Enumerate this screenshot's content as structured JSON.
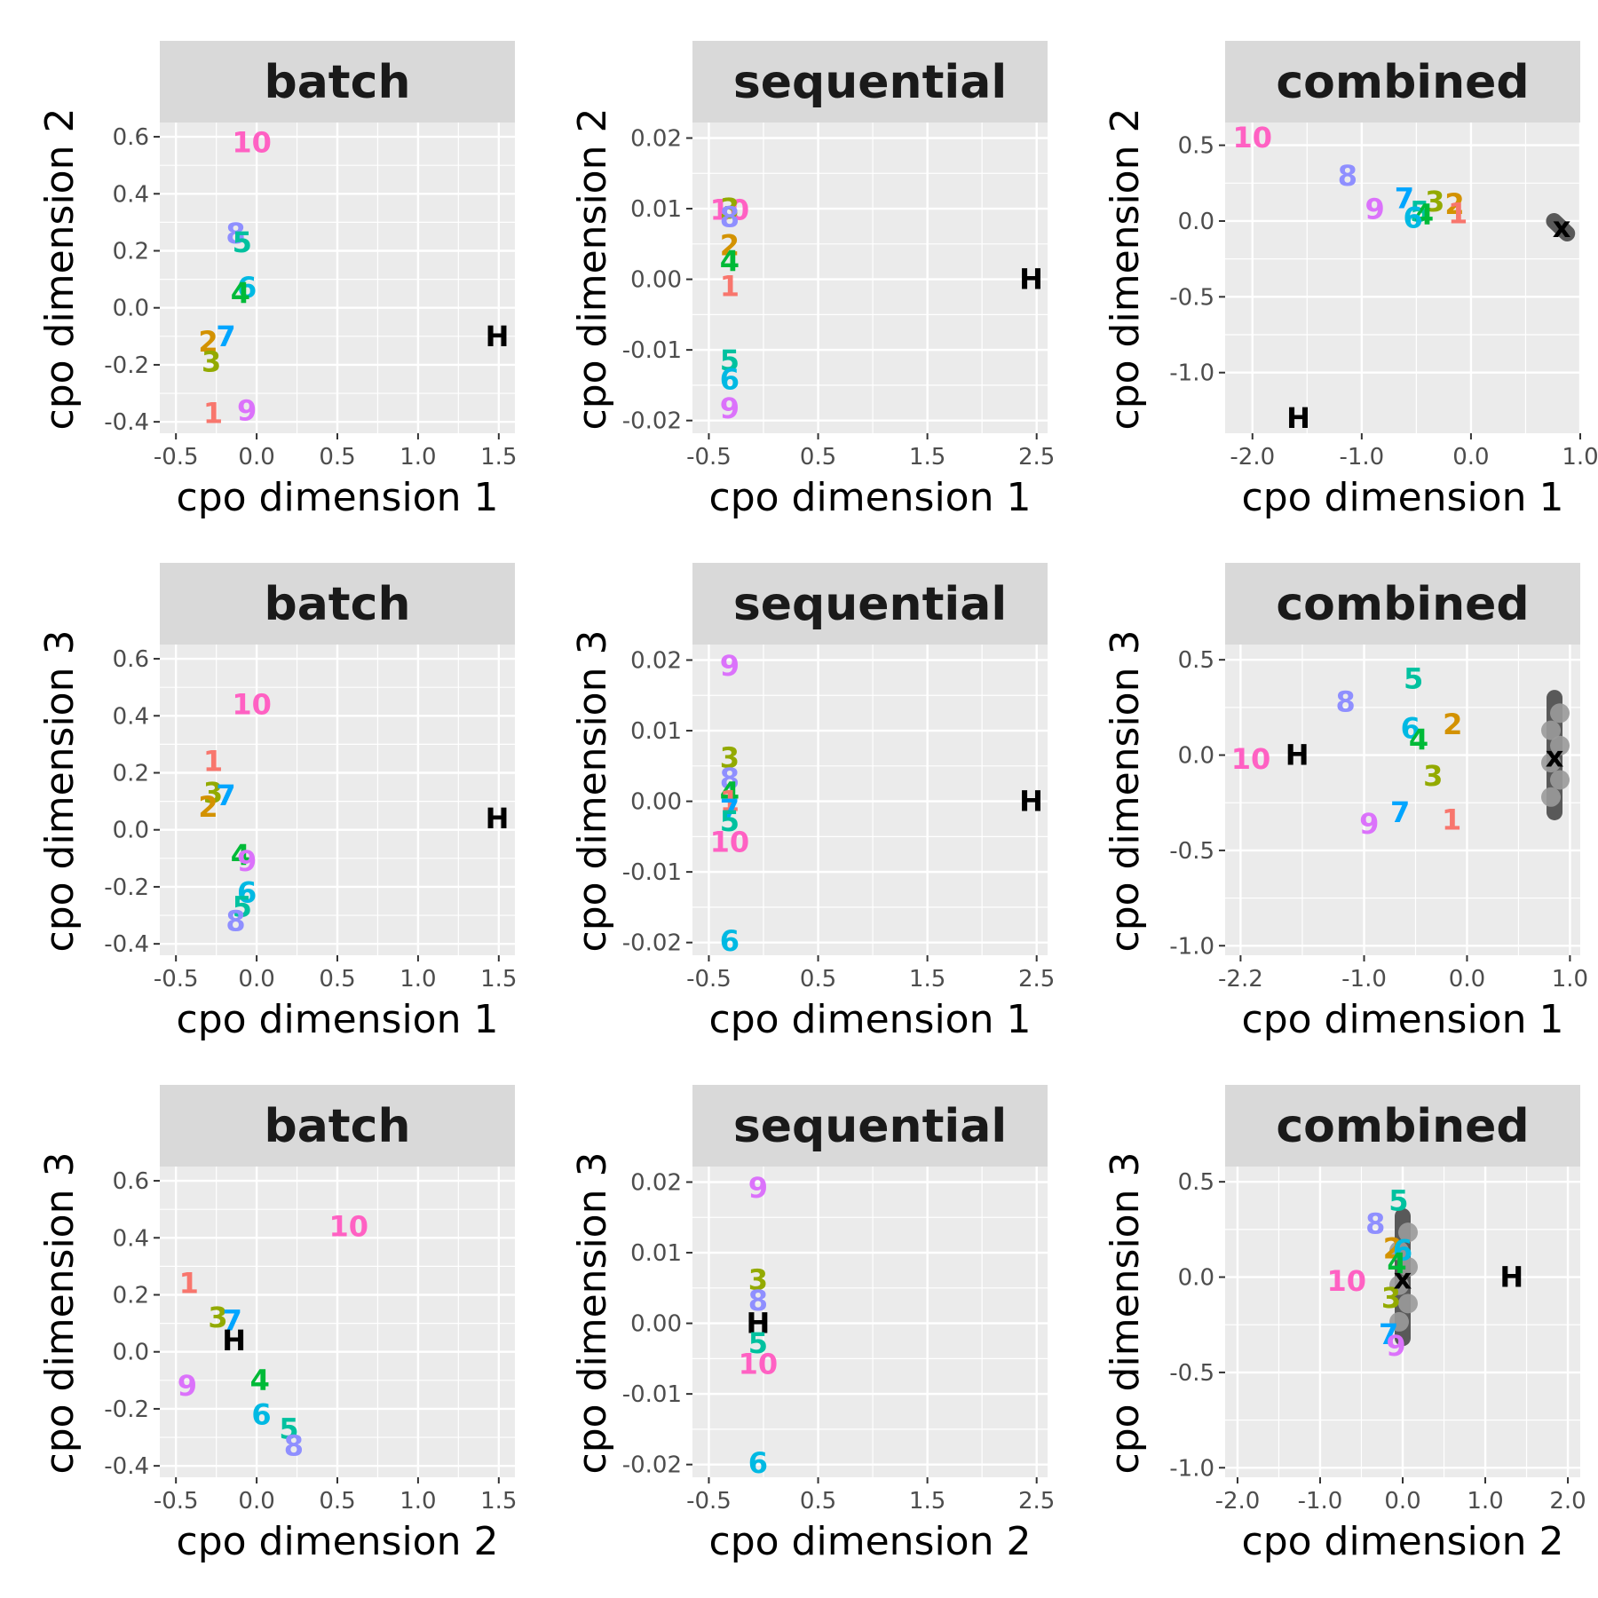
{
  "colors": {
    "1": "#F8766D",
    "2": "#D39200",
    "3": "#93AA00",
    "4": "#00BA38",
    "5": "#00C19F",
    "6": "#00B9E3",
    "7": "#00A5FF",
    "8": "#8F8FFF",
    "9": "#DB72FB",
    "10": "#FF61C3",
    "H": "#000000",
    "x": "#000000",
    "cloud": "#595959",
    "cloud_light": "#9a9a9a",
    "panel_bg": "#EBEBEB",
    "strip_bg": "#D9D9D9",
    "grid": "#FFFFFF"
  },
  "chart_data": [
    {
      "type": "scatter",
      "title": "batch",
      "xlabel": "cpo dimension 1",
      "ylabel": "cpo dimension 2",
      "xlim": [
        -0.6,
        1.6
      ],
      "ylim": [
        -0.44,
        0.65
      ],
      "xticks": [
        -0.5,
        0,
        0.5,
        1,
        1.5
      ],
      "xtick_labels": [
        "-0.5",
        "0.0",
        "0.5",
        "1.0",
        "1.5"
      ],
      "yticks": [
        -0.4,
        -0.2,
        0,
        0.2,
        0.4,
        0.6
      ],
      "ytick_labels": [
        "-0.4",
        "-0.2",
        "0.0",
        "0.2",
        "0.4",
        "0.6"
      ],
      "points": [
        {
          "label": "10",
          "x": -0.03,
          "y": 0.58
        },
        {
          "label": "8",
          "x": -0.13,
          "y": 0.26
        },
        {
          "label": "5",
          "x": -0.09,
          "y": 0.23
        },
        {
          "label": "6",
          "x": -0.06,
          "y": 0.07
        },
        {
          "label": "4",
          "x": -0.1,
          "y": 0.05
        },
        {
          "label": "7",
          "x": -0.19,
          "y": -0.1
        },
        {
          "label": "2",
          "x": -0.3,
          "y": -0.12
        },
        {
          "label": "3",
          "x": -0.28,
          "y": -0.19
        },
        {
          "label": "1",
          "x": -0.27,
          "y": -0.37
        },
        {
          "label": "9",
          "x": -0.06,
          "y": -0.36
        },
        {
          "label": "H",
          "x": 1.49,
          "y": -0.1
        }
      ]
    },
    {
      "type": "scatter",
      "title": "sequential",
      "xlabel": "cpo dimension 1",
      "ylabel": "cpo dimension 2",
      "xlim": [
        -0.65,
        2.6
      ],
      "ylim": [
        -0.0218,
        0.0222
      ],
      "xticks": [
        -0.5,
        0.5,
        1.5,
        2.5
      ],
      "xtick_labels": [
        "-0.5",
        "0.5",
        "1.5",
        "2.5"
      ],
      "yticks": [
        -0.02,
        -0.01,
        0,
        0.01,
        0.02
      ],
      "ytick_labels": [
        "-0.02",
        "-0.01",
        "0.00",
        "0.01",
        "0.02"
      ],
      "points": [
        {
          "label": "10",
          "x": -0.31,
          "y": 0.0098
        },
        {
          "label": "3",
          "x": -0.31,
          "y": 0.01
        },
        {
          "label": "8",
          "x": -0.31,
          "y": 0.0088
        },
        {
          "label": "2",
          "x": -0.31,
          "y": 0.0048
        },
        {
          "label": "4",
          "x": -0.31,
          "y": 0.0025
        },
        {
          "label": "1",
          "x": -0.31,
          "y": -0.001
        },
        {
          "label": "5",
          "x": -0.31,
          "y": -0.0115
        },
        {
          "label": "6",
          "x": -0.31,
          "y": -0.0142
        },
        {
          "label": "9",
          "x": -0.31,
          "y": -0.0183
        },
        {
          "label": "H",
          "x": 2.45,
          "y": 0
        }
      ]
    },
    {
      "type": "scatter",
      "title": "combined",
      "xlabel": "cpo dimension 1",
      "ylabel": "cpo dimension 2",
      "xlim": [
        -2.25,
        1.0
      ],
      "ylim": [
        -1.4,
        0.65
      ],
      "xticks": [
        -2,
        -1,
        0,
        1
      ],
      "xtick_labels": [
        "-2.0",
        "-1.0",
        "0.0",
        "1.0"
      ],
      "yticks": [
        -1,
        -0.5,
        0,
        0.5
      ],
      "ytick_labels": [
        "-1.0",
        "-0.5",
        "0.0",
        "0.5"
      ],
      "points": [
        {
          "label": "10",
          "x": -2.0,
          "y": 0.55
        },
        {
          "label": "8",
          "x": -1.13,
          "y": 0.3
        },
        {
          "label": "7",
          "x": -0.61,
          "y": 0.15
        },
        {
          "label": "3",
          "x": -0.33,
          "y": 0.13
        },
        {
          "label": "2",
          "x": -0.15,
          "y": 0.11
        },
        {
          "label": "9",
          "x": -0.88,
          "y": 0.08
        },
        {
          "label": "5",
          "x": -0.47,
          "y": 0.06
        },
        {
          "label": "4",
          "x": -0.43,
          "y": 0.04
        },
        {
          "label": "1",
          "x": -0.12,
          "y": 0.05
        },
        {
          "label": "6",
          "x": -0.53,
          "y": 0.02
        },
        {
          "label": "H",
          "x": -1.58,
          "y": -1.3
        },
        {
          "label": "x",
          "x": 0.83,
          "y": -0.04
        }
      ],
      "cloud": {
        "axis": "x",
        "center": [
          0.82,
          0.0
        ],
        "halfspan": 0.06
      }
    },
    {
      "type": "scatter",
      "title": "batch",
      "xlabel": "cpo dimension 1",
      "ylabel": "cpo dimension 3",
      "xlim": [
        -0.6,
        1.6
      ],
      "ylim": [
        -0.44,
        0.65
      ],
      "xticks": [
        -0.5,
        0,
        0.5,
        1,
        1.5
      ],
      "xtick_labels": [
        "-0.5",
        "0.0",
        "0.5",
        "1.0",
        "1.5"
      ],
      "yticks": [
        -0.4,
        -0.2,
        0,
        0.2,
        0.4,
        0.6
      ],
      "ytick_labels": [
        "-0.4",
        "-0.2",
        "0.0",
        "0.2",
        "0.4",
        "0.6"
      ],
      "points": [
        {
          "label": "10",
          "x": -0.03,
          "y": 0.44
        },
        {
          "label": "1",
          "x": -0.27,
          "y": 0.24
        },
        {
          "label": "3",
          "x": -0.27,
          "y": 0.13
        },
        {
          "label": "7",
          "x": -0.19,
          "y": 0.12
        },
        {
          "label": "2",
          "x": -0.3,
          "y": 0.08
        },
        {
          "label": "H",
          "x": 1.49,
          "y": 0.04
        },
        {
          "label": "4",
          "x": -0.1,
          "y": -0.09
        },
        {
          "label": "9",
          "x": -0.06,
          "y": -0.11
        },
        {
          "label": "6",
          "x": -0.06,
          "y": -0.22
        },
        {
          "label": "5",
          "x": -0.09,
          "y": -0.27
        },
        {
          "label": "8",
          "x": -0.13,
          "y": -0.32
        }
      ]
    },
    {
      "type": "scatter",
      "title": "sequential",
      "xlabel": "cpo dimension 1",
      "ylabel": "cpo dimension 3",
      "xlim": [
        -0.65,
        2.6
      ],
      "ylim": [
        -0.0218,
        0.0222
      ],
      "xticks": [
        -0.5,
        0.5,
        1.5,
        2.5
      ],
      "xtick_labels": [
        "-0.5",
        "0.5",
        "1.5",
        "2.5"
      ],
      "yticks": [
        -0.02,
        -0.01,
        0,
        0.01,
        0.02
      ],
      "ytick_labels": [
        "-0.02",
        "-0.01",
        "0.00",
        "0.01",
        "0.02"
      ],
      "points": [
        {
          "label": "9",
          "x": -0.31,
          "y": 0.0192
        },
        {
          "label": "3",
          "x": -0.31,
          "y": 0.0062
        },
        {
          "label": "8",
          "x": -0.31,
          "y": 0.0032
        },
        {
          "label": "4",
          "x": -0.31,
          "y": 0.0012
        },
        {
          "label": "1",
          "x": -0.31,
          "y": 0.0
        },
        {
          "label": "7",
          "x": -0.31,
          "y": -0.0012
        },
        {
          "label": "5",
          "x": -0.31,
          "y": -0.0028
        },
        {
          "label": "10",
          "x": -0.31,
          "y": -0.0058
        },
        {
          "label": "6",
          "x": -0.31,
          "y": -0.0198
        },
        {
          "label": "H",
          "x": 2.45,
          "y": 0
        }
      ]
    },
    {
      "type": "scatter",
      "title": "combined",
      "xlabel": "cpo dimension 1",
      "ylabel": "cpo dimension 3",
      "xlim": [
        -2.35,
        1.1
      ],
      "ylim": [
        -1.05,
        0.58
      ],
      "xticks": [
        -2.2,
        -1,
        0,
        1
      ],
      "xtick_labels": [
        "-2.2",
        "-1.0",
        "0.0",
        "1.0"
      ],
      "yticks": [
        -1,
        -0.5,
        0,
        0.5
      ],
      "ytick_labels": [
        "-1.0",
        "-0.5",
        "0.0",
        "0.5"
      ],
      "points": [
        {
          "label": "5",
          "x": -0.52,
          "y": 0.4
        },
        {
          "label": "8",
          "x": -1.18,
          "y": 0.28
        },
        {
          "label": "2",
          "x": -0.14,
          "y": 0.16
        },
        {
          "label": "6",
          "x": -0.55,
          "y": 0.14
        },
        {
          "label": "4",
          "x": -0.47,
          "y": 0.08
        },
        {
          "label": "10",
          "x": -2.1,
          "y": -0.02
        },
        {
          "label": "H",
          "x": -1.65,
          "y": 0.0
        },
        {
          "label": "3",
          "x": -0.33,
          "y": -0.11
        },
        {
          "label": "7",
          "x": -0.65,
          "y": -0.3
        },
        {
          "label": "9",
          "x": -0.95,
          "y": -0.36
        },
        {
          "label": "1",
          "x": -0.15,
          "y": -0.34
        },
        {
          "label": "x",
          "x": 0.85,
          "y": -0.01
        }
      ],
      "cloud": {
        "axis": "y",
        "center": [
          0.85,
          0.0
        ],
        "halfspan": 0.3
      }
    },
    {
      "type": "scatter",
      "title": "batch",
      "xlabel": "cpo dimension 2",
      "ylabel": "cpo dimension 3",
      "xlim": [
        -0.6,
        1.6
      ],
      "ylim": [
        -0.44,
        0.65
      ],
      "xticks": [
        -0.5,
        0,
        0.5,
        1,
        1.5
      ],
      "xtick_labels": [
        "-0.5",
        "0.0",
        "0.5",
        "1.0",
        "1.5"
      ],
      "yticks": [
        -0.4,
        -0.2,
        0,
        0.2,
        0.4,
        0.6
      ],
      "ytick_labels": [
        "-0.4",
        "-0.2",
        "0.0",
        "0.2",
        "0.4",
        "0.6"
      ],
      "points": [
        {
          "label": "10",
          "x": 0.57,
          "y": 0.44
        },
        {
          "label": "1",
          "x": -0.42,
          "y": 0.24
        },
        {
          "label": "3",
          "x": -0.24,
          "y": 0.12
        },
        {
          "label": "7",
          "x": -0.15,
          "y": 0.11
        },
        {
          "label": "H",
          "x": -0.14,
          "y": 0.04
        },
        {
          "label": "4",
          "x": 0.02,
          "y": -0.1
        },
        {
          "label": "9",
          "x": -0.43,
          "y": -0.12
        },
        {
          "label": "6",
          "x": 0.03,
          "y": -0.22
        },
        {
          "label": "5",
          "x": 0.2,
          "y": -0.27
        },
        {
          "label": "8",
          "x": 0.23,
          "y": -0.33
        }
      ]
    },
    {
      "type": "scatter",
      "title": "sequential",
      "xlabel": "cpo dimension 2",
      "ylabel": "cpo dimension 3",
      "xlim": [
        -0.65,
        2.6
      ],
      "ylim": [
        -0.0218,
        0.0222
      ],
      "xticks": [
        -0.5,
        0.5,
        1.5,
        2.5
      ],
      "xtick_labels": [
        "-0.5",
        "0.5",
        "1.5",
        "2.5"
      ],
      "yticks": [
        -0.02,
        -0.01,
        0,
        0.01,
        0.02
      ],
      "ytick_labels": [
        "-0.02",
        "-0.01",
        "0.00",
        "0.01",
        "0.02"
      ],
      "points": [
        {
          "label": "9",
          "x": -0.05,
          "y": 0.0192
        },
        {
          "label": "3",
          "x": -0.05,
          "y": 0.0062
        },
        {
          "label": "8",
          "x": -0.05,
          "y": 0.0032
        },
        {
          "label": "H",
          "x": -0.05,
          "y": 0.0
        },
        {
          "label": "5",
          "x": -0.05,
          "y": -0.0028
        },
        {
          "label": "10",
          "x": -0.05,
          "y": -0.0058
        },
        {
          "label": "6",
          "x": -0.05,
          "y": -0.0198
        }
      ]
    },
    {
      "type": "scatter",
      "title": "combined",
      "xlabel": "cpo dimension 2",
      "ylabel": "cpo dimension 3",
      "xlim": [
        -2.15,
        2.15
      ],
      "ylim": [
        -1.05,
        0.58
      ],
      "xticks": [
        -2,
        -1,
        0,
        1,
        2
      ],
      "xtick_labels": [
        "-2.0",
        "-1.0",
        "0.0",
        "1.0",
        "2.0"
      ],
      "yticks": [
        -1,
        -0.5,
        0,
        0.5
      ],
      "ytick_labels": [
        "-1.0",
        "-0.5",
        "0.0",
        "0.5"
      ],
      "points": [
        {
          "label": "5",
          "x": -0.05,
          "y": 0.4
        },
        {
          "label": "8",
          "x": -0.33,
          "y": 0.28
        },
        {
          "label": "2",
          "x": -0.12,
          "y": 0.15
        },
        {
          "label": "6",
          "x": 0.0,
          "y": 0.14
        },
        {
          "label": "4",
          "x": -0.07,
          "y": 0.07
        },
        {
          "label": "10",
          "x": -0.68,
          "y": -0.02
        },
        {
          "label": "3",
          "x": -0.14,
          "y": -0.11
        },
        {
          "label": "7",
          "x": -0.17,
          "y": -0.3
        },
        {
          "label": "9",
          "x": -0.08,
          "y": -0.36
        },
        {
          "label": "H",
          "x": 1.32,
          "y": 0.0
        },
        {
          "label": "x",
          "x": 0.0,
          "y": -0.01
        }
      ],
      "cloud": {
        "axis": "y",
        "center": [
          0.0,
          0.0
        ],
        "halfspan": 0.32
      }
    }
  ]
}
